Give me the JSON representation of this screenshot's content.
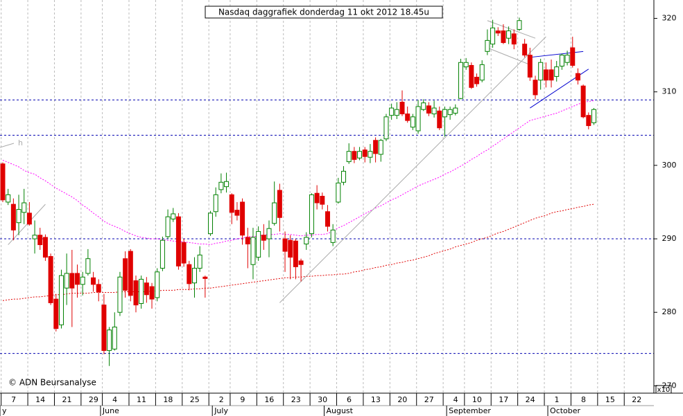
{
  "chart_data": {
    "type": "candlestick",
    "title": "Nasdaq daggrafiek donderdag 11 okt 2012 18.45u",
    "credit": "© ADN Beursanalyse",
    "scale_note": "x10",
    "annotation": "h",
    "up_color": "#008000",
    "down_color": "#e00000",
    "categories": [
      null,
      "7",
      null,
      null,
      null,
      null,
      "14",
      null,
      null,
      null,
      null,
      "21",
      null,
      null,
      null,
      null,
      "29",
      null,
      null,
      null,
      "4",
      null,
      null,
      null,
      null,
      "11",
      null,
      null,
      null,
      null,
      "18",
      null,
      null,
      null,
      null,
      "25",
      null,
      null,
      null,
      null,
      "2",
      null,
      null,
      null,
      "9",
      null,
      null,
      null,
      null,
      "16",
      null,
      null,
      null,
      null,
      "23",
      null,
      null,
      null,
      null,
      "30",
      null,
      null,
      null,
      null,
      "6",
      null,
      null,
      null,
      null,
      "13",
      null,
      null,
      null,
      null,
      "20",
      null,
      null,
      null,
      null,
      "27",
      null,
      null,
      null,
      null,
      "4",
      null,
      null,
      null,
      "10",
      null,
      null,
      null,
      null,
      "17",
      null,
      null,
      null,
      null,
      "24",
      null,
      null,
      null,
      null,
      "1",
      null,
      null,
      null,
      null,
      "8",
      null,
      null,
      null,
      null,
      "15",
      null,
      null,
      null,
      null,
      "22"
    ],
    "months": [
      "y",
      null,
      null,
      null,
      null,
      null,
      null,
      null,
      null,
      null,
      null,
      null,
      null,
      null,
      null,
      null,
      null,
      null,
      null,
      "June",
      null,
      null,
      null,
      null,
      null,
      null,
      null,
      null,
      null,
      null,
      null,
      null,
      null,
      null,
      null,
      null,
      null,
      null,
      null,
      null,
      "July",
      null,
      null,
      null,
      null,
      null,
      null,
      null,
      null,
      null,
      null,
      null,
      null,
      null,
      null,
      null,
      null,
      null,
      null,
      null,
      null,
      "August",
      null,
      null,
      null,
      null,
      null,
      null,
      null,
      null,
      null,
      null,
      null,
      null,
      null,
      null,
      null,
      null,
      null,
      null,
      null,
      null,
      null,
      null,
      "September",
      null,
      null,
      null,
      null,
      null,
      null,
      null,
      null,
      null,
      null,
      null,
      null,
      null,
      null,
      null,
      null,
      null,
      null,
      "October",
      null,
      null,
      null,
      null,
      null,
      null,
      null,
      null,
      null,
      null,
      null,
      null,
      null,
      null,
      null
    ],
    "open": [
      300.2,
      295,
      294.7,
      292.2,
      293.6,
      293.5,
      290,
      290.5,
      290.2,
      287.6,
      281.8,
      278.3,
      283.3,
      285.3,
      285.3,
      283.8,
      285.3,
      284.7,
      283.8,
      281,
      274.8,
      275,
      280,
      287.3,
      288.3,
      284.3,
      281.2,
      284,
      283.5,
      282,
      286,
      290.3,
      292.7,
      293,
      289.5,
      286.5,
      284,
      286,
      284.8,
      290.7,
      293.7,
      296.7,
      297.1,
      296,
      293.9,
      295,
      290.2,
      286.5,
      287.5,
      290.5,
      290,
      292.1,
      296.6,
      290,
      289.8,
      289.7,
      287,
      289.3,
      290.7,
      296.2,
      295.8,
      293.7,
      289.5,
      295,
      297.7,
      300.5,
      301.9,
      301,
      302.1,
      301.1,
      303.4,
      301.5,
      303.6,
      306.8,
      306.8,
      308.6,
      307,
      305.2,
      304.7,
      307.6,
      308.1,
      307,
      307.4,
      306.6,
      306.9,
      307.1,
      309.1,
      313.4,
      313.6,
      312,
      311.6,
      315.5,
      316.5,
      318.3,
      318.3,
      317.3,
      317.9,
      318.5,
      316.5,
      315,
      311.6,
      311.6,
      313,
      313,
      312.1,
      313.5,
      314,
      316,
      312.5,
      310.8,
      306.8,
      305.8,
      null,
      null,
      null,
      null,
      null,
      null,
      null
    ],
    "high": [
      300.4,
      296.8,
      295.5,
      296,
      296.8,
      295,
      292.5,
      291.5,
      290.6,
      288,
      282.5,
      285.8,
      288,
      288.5,
      286.5,
      285.5,
      288.6,
      285.5,
      284.5,
      282.5,
      278,
      280,
      285.5,
      288.3,
      288.6,
      285,
      285,
      284.8,
      284,
      286,
      290.3,
      294,
      294.2,
      293.5,
      290,
      287,
      287.5,
      289,
      285,
      293.8,
      297,
      298.9,
      299,
      296.2,
      295,
      295.5,
      291.5,
      291.5,
      291.7,
      292,
      292.5,
      297.8,
      297.5,
      291,
      290.5,
      290,
      287.3,
      290.9,
      296.2,
      297.3,
      296.3,
      294.6,
      292,
      298.3,
      299.9,
      303,
      302.5,
      302.5,
      302.5,
      302.9,
      303.8,
      303.6,
      307,
      308.4,
      308.6,
      310.2,
      308,
      307,
      308.9,
      309,
      308.6,
      308.8,
      308,
      308,
      308,
      308.3,
      314.5,
      314.6,
      314,
      312.5,
      314.3,
      318.5,
      319.8,
      318.8,
      319.2,
      318.9,
      318.5,
      320.1,
      317.2,
      316,
      312.2,
      314.5,
      314,
      314.4,
      314.2,
      315.2,
      315.6,
      317.5,
      313.2,
      311,
      307.2,
      307.8,
      null,
      null,
      null,
      null,
      null,
      null,
      null
    ],
    "low": [
      295,
      294.6,
      289.8,
      290.5,
      292,
      291.8,
      288,
      288.5,
      287,
      281,
      277.4,
      277.8,
      281,
      278,
      282,
      282.3,
      285,
      282.8,
      281.5,
      274.3,
      272.7,
      274.8,
      279.5,
      282,
      281.5,
      280,
      280.5,
      281.3,
      280.5,
      281.5,
      285.6,
      290,
      292.3,
      285.8,
      286.2,
      283,
      282,
      285.5,
      282,
      290.4,
      293,
      296.2,
      296.3,
      292,
      292.5,
      289.2,
      286,
      284.5,
      287,
      288.5,
      287.5,
      291.8,
      291,
      285.5,
      284.5,
      284.5,
      284.2,
      288.5,
      290.2,
      294,
      294,
      291,
      289,
      294.8,
      297.3,
      300.2,
      300.3,
      300.7,
      300.4,
      300.3,
      300.4,
      300.5,
      303.3,
      306.2,
      306.3,
      306.7,
      305.8,
      304.8,
      304.3,
      307.4,
      306.7,
      306.5,
      304.8,
      303.9,
      306.2,
      306.8,
      309,
      313,
      310.4,
      310.7,
      311.3,
      315,
      316,
      317.6,
      316.5,
      316.5,
      315.8,
      318.3,
      314.7,
      311.5,
      309,
      310.3,
      310.6,
      310.6,
      311.4,
      313,
      313.6,
      313.3,
      311,
      306.4,
      304.9,
      305.5,
      null,
      null,
      null,
      null,
      null,
      null,
      null
    ],
    "close": [
      295.3,
      296,
      291.2,
      294,
      294.9,
      292,
      290.5,
      289.2,
      287.5,
      281.3,
      277.8,
      285,
      285.3,
      283.3,
      283.8,
      284.8,
      287.3,
      283.8,
      282.8,
      274.8,
      277.6,
      278,
      284.8,
      283,
      282.3,
      281,
      284.5,
      282.4,
      281.8,
      285.5,
      289.8,
      293,
      293.4,
      286.3,
      286.7,
      283.9,
      286,
      287.8,
      284.6,
      293.5,
      296,
      297.7,
      297.8,
      293.6,
      293.2,
      290.5,
      289.3,
      290.2,
      291,
      289.8,
      291.4,
      294.9,
      292.9,
      288.3,
      287.5,
      286.2,
      286.5,
      290.2,
      296,
      294.9,
      294.7,
      291.7,
      291.2,
      297.6,
      299.2,
      301.9,
      300.8,
      301.9,
      301.2,
      301.9,
      301.6,
      303.4,
      306.6,
      307.8,
      307.6,
      307,
      306.1,
      306.6,
      308,
      308.5,
      307.1,
      307.8,
      305.1,
      307.6,
      307.6,
      307.8,
      314,
      314,
      310.6,
      311.1,
      313.7,
      317,
      318.7,
      318,
      316.7,
      318.3,
      316.5,
      319.7,
      315,
      312,
      309.6,
      314,
      311.6,
      311.6,
      313.4,
      315,
      315,
      313.6,
      311.6,
      306.6,
      305.4,
      307.6,
      null,
      null,
      null,
      null,
      null,
      null,
      null
    ],
    "moving_averages": [
      {
        "color": "#ff00ff",
        "values": [
          300.7,
          300.4,
          300.1,
          299.8,
          299.3,
          299.0,
          298.8,
          298.3,
          297.9,
          297.4,
          296.9,
          296.5,
          296.1,
          295.7,
          295.2,
          294.6,
          294.1,
          293.5,
          293.0,
          292.4,
          292.0,
          291.7,
          291.4,
          291.0,
          290.7,
          290.4,
          290.2,
          290.1,
          290.0,
          290.0,
          289.9,
          289.8,
          289.7,
          289.6,
          289.6,
          289.5,
          289.4,
          289.3,
          289.3,
          289.2,
          289.4,
          289.5,
          289.7,
          289.8,
          290.0,
          290.1,
          290.3,
          290.3,
          290.4,
          290.5,
          290.6,
          290.6,
          290.7,
          290.6,
          290.6,
          290.5,
          290.4,
          290.5,
          290.5,
          290.6,
          290.6,
          290.7,
          291.1,
          291.5,
          291.8,
          292.2,
          292.6,
          293.0,
          293.4,
          293.8,
          294.2,
          294.5,
          294.9,
          295.3,
          295.6,
          296.0,
          296.4,
          296.8,
          297.2,
          297.5,
          297.8,
          298.1,
          298.4,
          298.8,
          299.1,
          299.5,
          299.9,
          300.3,
          300.8,
          301.2,
          301.7,
          302.1,
          302.6,
          303.1,
          303.6,
          304.1,
          304.6,
          305.1,
          305.6,
          306.1,
          306.3,
          306.5,
          306.7,
          306.9,
          307.1,
          307.4,
          307.7,
          308.0,
          308.3,
          308.6,
          308.7,
          308.8,
          null,
          null,
          null,
          null,
          null,
          null,
          null
        ]
      },
      {
        "color": "#e00000",
        "values": [
          281.6,
          281.7,
          281.8,
          281.8,
          281.9,
          282.0,
          282.1,
          282.1,
          282.2,
          282.3,
          282.4,
          282.4,
          282.5,
          282.6,
          282.6,
          282.6,
          282.6,
          282.7,
          282.7,
          282.7,
          282.7,
          282.7,
          282.8,
          282.8,
          282.8,
          282.8,
          282.8,
          282.8,
          282.9,
          282.9,
          283.0,
          283.0,
          283.0,
          283.1,
          283.1,
          283.1,
          283.2,
          283.2,
          283.3,
          283.3,
          283.4,
          283.5,
          283.6,
          283.7,
          283.8,
          283.9,
          284.0,
          284.1,
          284.2,
          284.3,
          284.4,
          284.5,
          284.6,
          284.7,
          284.7,
          284.8,
          284.8,
          284.9,
          284.9,
          285.0,
          285.0,
          285.1,
          285.1,
          285.2,
          285.2,
          285.3,
          285.5,
          285.6,
          285.8,
          285.9,
          286.1,
          286.2,
          286.4,
          286.5,
          286.7,
          286.8,
          287.0,
          287.1,
          287.3,
          287.5,
          287.7,
          288.0,
          288.2,
          288.4,
          288.6,
          288.9,
          289.1,
          289.3,
          289.5,
          289.8,
          290.0,
          290.2,
          290.5,
          290.8,
          291.0,
          291.3,
          291.6,
          291.9,
          292.2,
          292.5,
          292.8,
          293.0,
          293.2,
          293.5,
          293.7,
          293.8,
          294.0,
          294.1,
          294.3,
          294.4,
          294.6,
          294.7,
          null,
          null,
          null,
          null,
          null,
          null,
          null
        ]
      }
    ],
    "levels": [
      308.9,
      304.1,
      290,
      274.4
    ],
    "level_color": "#0000b0",
    "trend_lines": [
      {
        "color": "#aaaaaa",
        "points": [
          [
            52,
            281.3
          ],
          [
            102,
            317.5
          ]
        ]
      },
      {
        "color": "#aaaaaa",
        "points": [
          [
            1,
            289.2
          ],
          [
            8,
            294.7
          ]
        ]
      },
      {
        "color": "#aaaaaa",
        "points": [
          [
            91,
            319.7
          ],
          [
            100,
            317.3
          ]
        ]
      },
      {
        "color": "#aaaaaa",
        "points": [
          [
            91,
            316
          ],
          [
            99,
            313.7
          ]
        ]
      },
      {
        "color": "#0000d0",
        "points": [
          [
            99,
            314.7
          ],
          [
            109,
            315.5
          ]
        ]
      },
      {
        "color": "#0000d0",
        "points": [
          [
            99,
            307.8
          ],
          [
            110,
            313.1
          ]
        ]
      }
    ],
    "ylim": [
      269,
      322.5
    ],
    "yticks": [
      270,
      280,
      290,
      300,
      310,
      320
    ],
    "grid": true
  }
}
